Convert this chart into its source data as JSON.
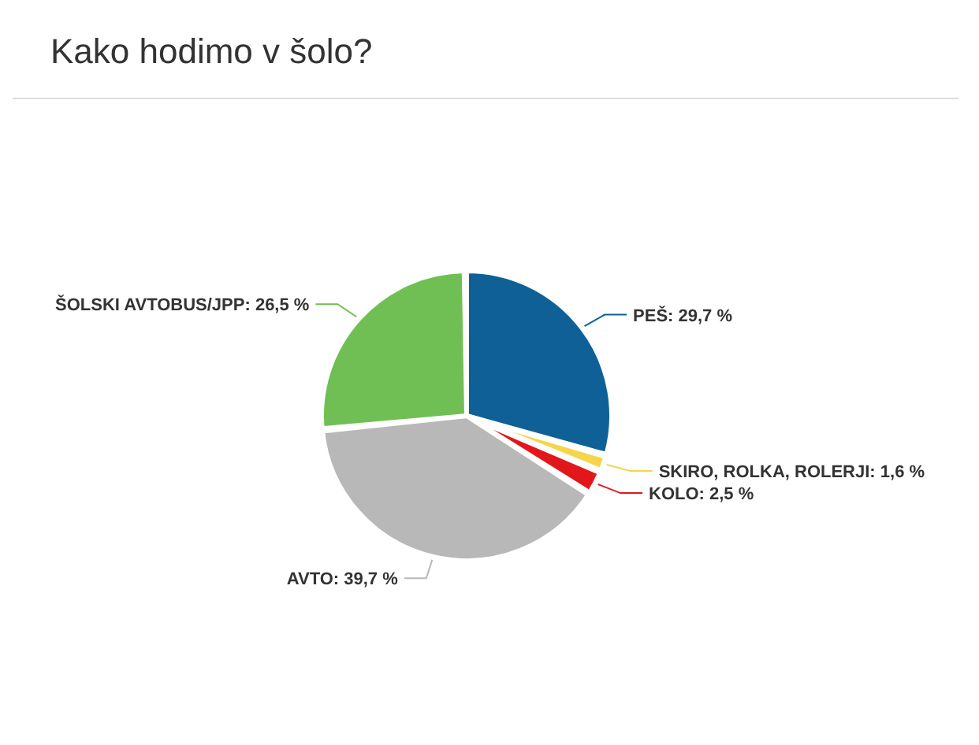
{
  "chart_data": {
    "type": "pie",
    "title": "Kako hodimo v šolo?",
    "categories": [
      "PEŠ",
      "SKIRO, ROLKA, ROLERJI",
      "KOLO",
      "AVTO",
      "ŠOLSKI AVTOBUS/JPP"
    ],
    "values": [
      29.7,
      1.6,
      2.5,
      39.7,
      26.5
    ],
    "value_labels": [
      "29,7 %",
      "1,6 %",
      "2,5 %",
      "39,7 %",
      "26,5 %"
    ],
    "colors": [
      "#0f6096",
      "#f6d54b",
      "#e2171c",
      "#b8b8b8",
      "#70bf54"
    ],
    "legend": false
  }
}
